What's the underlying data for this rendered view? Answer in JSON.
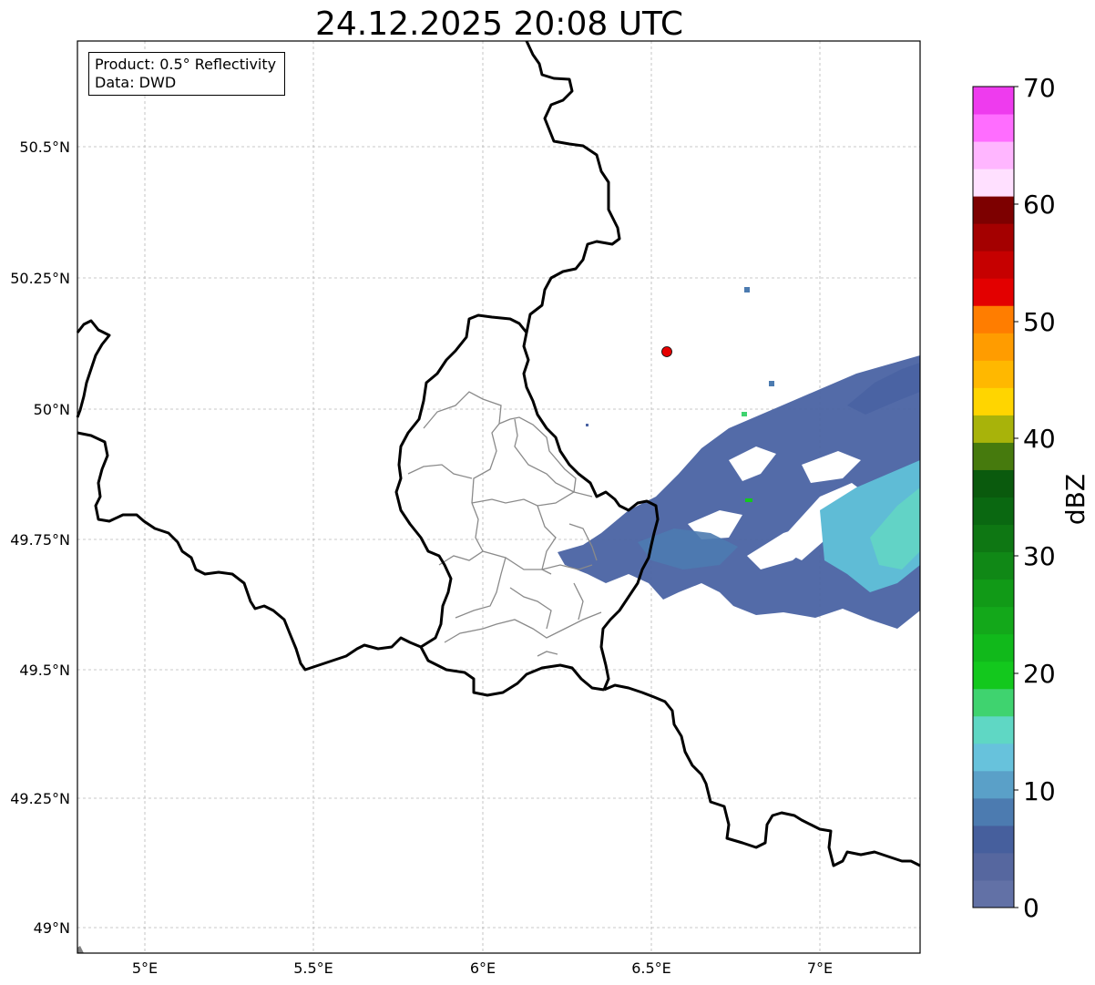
{
  "title": "24.12.2025 20:08 UTC",
  "info": {
    "product": "Product: 0.5° Reflectivity",
    "data": "Data: DWD"
  },
  "axes": {
    "lon_ticks": [
      "5°E",
      "5.5°E",
      "6°E",
      "6.5°E",
      "7°E"
    ],
    "lat_ticks": [
      "50.5°N",
      "50.25°N",
      "50°N",
      "49.75°N",
      "49.5°N",
      "49.25°N",
      "49°N"
    ]
  },
  "marker": {
    "label": "radar-site",
    "color": "#e60000"
  },
  "colorbar": {
    "label": "dBZ",
    "ticks": [
      "0",
      "10",
      "20",
      "30",
      "40",
      "50",
      "60",
      "70"
    ],
    "colors": [
      "#6271a6",
      "#56679f",
      "#465f9d",
      "#4c7bb0",
      "#5aa0c8",
      "#67c2dc",
      "#5fd7c4",
      "#3fd36f",
      "#13c81d",
      "#11b91b",
      "#13a81a",
      "#119a17",
      "#108816",
      "#0e7713",
      "#0a6811",
      "#0a5a0d",
      "#467a0d",
      "#a8b30a",
      "#ffd500",
      "#ffb800",
      "#ff9c00",
      "#ff7d00",
      "#e30000",
      "#c60000",
      "#a40000",
      "#7d0000",
      "#ffe0ff",
      "#ffb6ff",
      "#ff6dff",
      "#ee3bee"
    ]
  }
}
